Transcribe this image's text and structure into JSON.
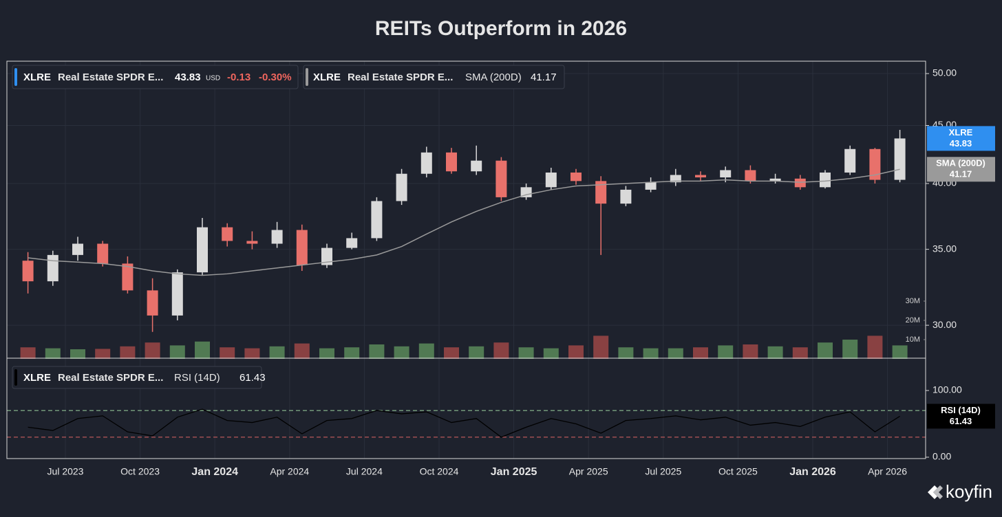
{
  "chart_data": {
    "type": "candlestick",
    "title": "REITs Outperform in 2026",
    "x": [
      "2023-05",
      "2023-06",
      "2023-07",
      "2023-08",
      "2023-09",
      "2023-10",
      "2023-11",
      "2023-12",
      "2024-01",
      "2024-02",
      "2024-03",
      "2024-04",
      "2024-05",
      "2024-06",
      "2024-07",
      "2024-08",
      "2024-09",
      "2024-10",
      "2024-11",
      "2024-12",
      "2025-01",
      "2025-02",
      "2025-03",
      "2025-04",
      "2025-05",
      "2025-06",
      "2025-07",
      "2025-08",
      "2025-09",
      "2025-10",
      "2025-11",
      "2025-12",
      "2026-01",
      "2026-02",
      "2026-03",
      "2026-04"
    ],
    "open": [
      34.2,
      32.8,
      34.6,
      35.4,
      34.0,
      32.2,
      30.6,
      33.4,
      36.6,
      35.6,
      35.4,
      36.4,
      33.9,
      35.1,
      35.8,
      38.6,
      40.8,
      42.6,
      41.0,
      41.9,
      38.9,
      39.7,
      40.9,
      40.2,
      38.4,
      39.5,
      40.1,
      40.7,
      40.5,
      41.1,
      40.2,
      40.4,
      39.7,
      40.9,
      42.9,
      40.3
    ],
    "high": [
      34.8,
      34.9,
      35.9,
      35.6,
      34.5,
      33.0,
      33.6,
      37.3,
      36.9,
      36.3,
      37.0,
      36.8,
      35.4,
      36.2,
      38.9,
      41.2,
      43.1,
      43.0,
      43.2,
      42.2,
      40.0,
      41.3,
      41.2,
      40.6,
      39.8,
      40.5,
      41.2,
      41.0,
      41.4,
      41.5,
      40.8,
      40.7,
      41.1,
      43.2,
      43.0,
      44.6
    ],
    "low": [
      32.0,
      32.5,
      34.2,
      33.8,
      32.0,
      29.6,
      30.3,
      33.2,
      35.2,
      35.0,
      35.1,
      33.5,
      33.7,
      35.0,
      35.6,
      38.3,
      40.5,
      40.8,
      40.7,
      38.6,
      38.7,
      39.5,
      39.9,
      34.6,
      38.2,
      39.3,
      39.8,
      40.2,
      40.1,
      40.0,
      40.0,
      39.5,
      39.6,
      40.7,
      40.0,
      40.1
    ],
    "close": [
      32.8,
      34.6,
      35.4,
      34.0,
      32.2,
      30.6,
      33.4,
      36.6,
      35.6,
      35.4,
      36.4,
      33.9,
      35.1,
      35.8,
      38.6,
      40.8,
      42.6,
      41.0,
      41.9,
      38.9,
      39.7,
      40.9,
      40.2,
      38.4,
      39.5,
      40.1,
      40.7,
      40.5,
      41.1,
      40.2,
      40.4,
      39.7,
      40.9,
      42.9,
      40.3,
      43.83
    ],
    "up_color": "#d9d9d9",
    "down_color": "#e8716b",
    "log_scale": true,
    "grid": true,
    "ylim": [
      28.1,
      51.2
    ],
    "yticks": [
      {
        "value": 30,
        "label": "30.00"
      },
      {
        "value": 35,
        "label": "35.00"
      },
      {
        "value": 40,
        "label": "40.00"
      },
      {
        "value": 45,
        "label": "45.00"
      },
      {
        "value": 50,
        "label": "50.00"
      }
    ],
    "xticks": [
      {
        "value": "2023-07",
        "label": "Jul 2023"
      },
      {
        "value": "2023-10",
        "label": "Oct 2023"
      },
      {
        "value": "2024-01",
        "label": "Jan 2024"
      },
      {
        "value": "2024-04",
        "label": "Apr 2024"
      },
      {
        "value": "2024-07",
        "label": "Jul 2024"
      },
      {
        "value": "2024-10",
        "label": "Oct 2024"
      },
      {
        "value": "2025-01",
        "label": "Jan 2025"
      },
      {
        "value": "2025-04",
        "label": "Apr 2025"
      },
      {
        "value": "2025-07",
        "label": "Jul 2025"
      },
      {
        "value": "2025-10",
        "label": "Oct 2025"
      },
      {
        "value": "2026-01",
        "label": "Jan 2026"
      },
      {
        "value": "2026-04",
        "label": "Apr 2026"
      }
    ],
    "price_badge": {
      "name": "XLRE",
      "color": "#2f8ff0"
    },
    "overlays": [
      {
        "name": "SMA (200D)",
        "color": "#9a9a9a",
        "values": [
          34.4,
          34.2,
          34.1,
          34.0,
          33.8,
          33.5,
          33.3,
          33.2,
          33.3,
          33.5,
          33.7,
          33.9,
          34.1,
          34.3,
          34.6,
          35.2,
          36.1,
          37.0,
          37.8,
          38.5,
          39.1,
          39.5,
          39.8,
          39.9,
          40.0,
          40.1,
          40.2,
          40.2,
          40.3,
          40.2,
          40.2,
          40.1,
          40.2,
          40.4,
          40.7,
          41.17
        ]
      }
    ],
    "volume": {
      "values": [
        6000000,
        5500000,
        5000000,
        5200000,
        6500000,
        8500000,
        7000000,
        9000000,
        6000000,
        5500000,
        6500000,
        8000000,
        5500000,
        6000000,
        7500000,
        6500000,
        8000000,
        6000000,
        6500000,
        8500000,
        6000000,
        5500000,
        7000000,
        12000000,
        6000000,
        5500000,
        5500000,
        6000000,
        7000000,
        7500000,
        6500000,
        6000000,
        8500000,
        10000000,
        12000000,
        7000000
      ],
      "up_color": "#5b8a5b",
      "down_color": "#9c4646",
      "ylim": [
        0,
        30000000
      ],
      "yticks": [
        {
          "value": 10000000,
          "label": "10M"
        },
        {
          "value": 20000000,
          "label": "20M"
        },
        {
          "value": 30000000,
          "label": "30M"
        }
      ]
    },
    "rsi": {
      "name": "RSI (14D)",
      "color": "#000000",
      "values": [
        45,
        40,
        58,
        62,
        38,
        32,
        60,
        72,
        55,
        52,
        60,
        35,
        55,
        58,
        70,
        65,
        68,
        52,
        58,
        30,
        45,
        58,
        50,
        36,
        55,
        58,
        62,
        56,
        60,
        48,
        52,
        46,
        60,
        68,
        38,
        61.43
      ],
      "ylim": [
        0,
        100
      ],
      "yticks": [
        {
          "value": 0,
          "label": "0.00"
        },
        {
          "value": 100,
          "label": "100.00"
        }
      ],
      "levels": [
        {
          "value": 70,
          "color": "#9fd49f"
        },
        {
          "value": 30,
          "color": "#e06666"
        }
      ]
    },
    "legend": {
      "symbol": "XLRE",
      "name": "Real Estate SPDR E...",
      "currency": "USD",
      "change": -0.13,
      "change_pct": "-0.30%"
    },
    "brand": "koyfin"
  }
}
